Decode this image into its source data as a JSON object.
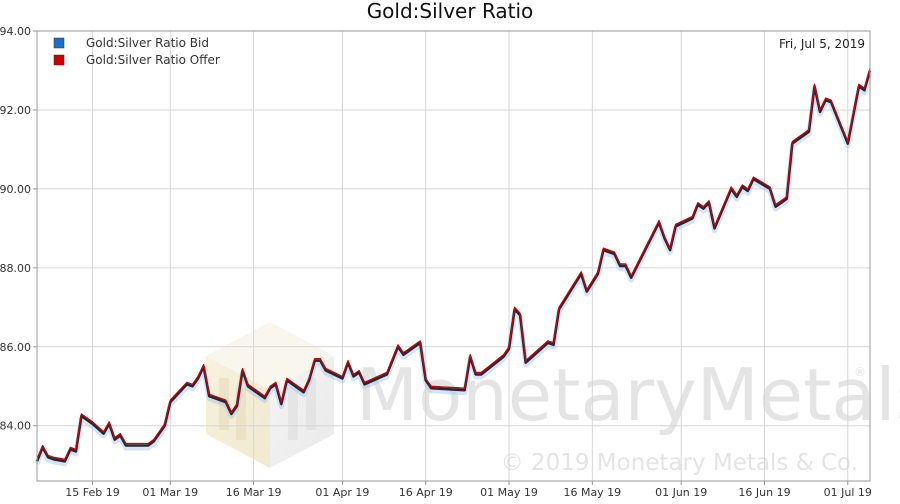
{
  "chart_data": {
    "type": "line",
    "title": "Gold:Silver Ratio",
    "date_label": "Fri, Jul 5, 2019",
    "xlabel": "",
    "ylabel": "",
    "x_range": [
      "2019-02-05",
      "2019-07-05"
    ],
    "ylim": [
      82.6,
      94.0
    ],
    "y_ticks": [
      84.0,
      86.0,
      88.0,
      90.0,
      92.0,
      94.0
    ],
    "y_tick_labels": [
      "84.00",
      "86.00",
      "88.00",
      "90.00",
      "92.00",
      "94.00"
    ],
    "x_ticks": [
      "2019-02-15",
      "2019-03-01",
      "2019-03-16",
      "2019-04-01",
      "2019-04-16",
      "2019-05-01",
      "2019-05-16",
      "2019-06-01",
      "2019-06-16",
      "2019-07-01"
    ],
    "x_tick_labels": [
      "15 Feb 19",
      "01 Mar 19",
      "16 Mar 19",
      "01 Apr 19",
      "16 Apr 19",
      "01 May 19",
      "16 May 19",
      "01 Jun 19",
      "16 Jun 19",
      "01 Jul 19"
    ],
    "grid": true,
    "legend_position": "top-left",
    "watermark": {
      "brand": "MonetaryMetals",
      "registered_mark": "®",
      "copyright": "© 2019 Monetary Metals & Co."
    },
    "series": [
      {
        "name": "Gold:Silver Ratio Bid",
        "color": "#1a6fc4",
        "points": [
          [
            "2019-02-05",
            83.1
          ],
          [
            "2019-02-06",
            83.45
          ],
          [
            "2019-02-07",
            83.2
          ],
          [
            "2019-02-08",
            83.15
          ],
          [
            "2019-02-10",
            83.1
          ],
          [
            "2019-02-11",
            83.4
          ],
          [
            "2019-02-12",
            83.35
          ],
          [
            "2019-02-13",
            84.25
          ],
          [
            "2019-02-15",
            84.05
          ],
          [
            "2019-02-17",
            83.8
          ],
          [
            "2019-02-18",
            84.05
          ],
          [
            "2019-02-19",
            83.65
          ],
          [
            "2019-02-20",
            83.75
          ],
          [
            "2019-02-21",
            83.5
          ],
          [
            "2019-02-25",
            83.5
          ],
          [
            "2019-02-26",
            83.6
          ],
          [
            "2019-02-28",
            84.0
          ],
          [
            "2019-03-01",
            84.6
          ],
          [
            "2019-03-04",
            85.05
          ],
          [
            "2019-03-05",
            85.0
          ],
          [
            "2019-03-06",
            85.2
          ],
          [
            "2019-03-07",
            85.5
          ],
          [
            "2019-03-08",
            84.75
          ],
          [
            "2019-03-11",
            84.6
          ],
          [
            "2019-03-12",
            84.3
          ],
          [
            "2019-03-13",
            84.5
          ],
          [
            "2019-03-14",
            85.4
          ],
          [
            "2019-03-15",
            85.0
          ],
          [
            "2019-03-18",
            84.7
          ],
          [
            "2019-03-19",
            84.95
          ],
          [
            "2019-03-20",
            85.05
          ],
          [
            "2019-03-21",
            84.55
          ],
          [
            "2019-03-22",
            85.15
          ],
          [
            "2019-03-25",
            84.85
          ],
          [
            "2019-03-26",
            85.15
          ],
          [
            "2019-03-27",
            85.65
          ],
          [
            "2019-03-28",
            85.65
          ],
          [
            "2019-03-29",
            85.4
          ],
          [
            "2019-04-01",
            85.2
          ],
          [
            "2019-04-02",
            85.6
          ],
          [
            "2019-04-03",
            85.25
          ],
          [
            "2019-04-04",
            85.35
          ],
          [
            "2019-04-05",
            85.05
          ],
          [
            "2019-04-09",
            85.3
          ],
          [
            "2019-04-10",
            85.65
          ],
          [
            "2019-04-11",
            86.0
          ],
          [
            "2019-04-12",
            85.8
          ],
          [
            "2019-04-15",
            86.1
          ],
          [
            "2019-04-16",
            85.15
          ],
          [
            "2019-04-17",
            84.95
          ],
          [
            "2019-04-23",
            84.9
          ],
          [
            "2019-04-24",
            85.75
          ],
          [
            "2019-04-25",
            85.3
          ],
          [
            "2019-04-26",
            85.3
          ],
          [
            "2019-04-30",
            85.75
          ],
          [
            "2019-05-01",
            85.95
          ],
          [
            "2019-05-02",
            86.95
          ],
          [
            "2019-05-03",
            86.8
          ],
          [
            "2019-05-04",
            85.6
          ],
          [
            "2019-05-08",
            86.1
          ],
          [
            "2019-05-09",
            86.05
          ],
          [
            "2019-05-10",
            86.95
          ],
          [
            "2019-05-14",
            87.85
          ],
          [
            "2019-05-15",
            87.4
          ],
          [
            "2019-05-17",
            87.85
          ],
          [
            "2019-05-18",
            88.45
          ],
          [
            "2019-05-20",
            88.35
          ],
          [
            "2019-05-21",
            88.05
          ],
          [
            "2019-05-22",
            88.05
          ],
          [
            "2019-05-23",
            87.75
          ],
          [
            "2019-05-28",
            89.15
          ],
          [
            "2019-05-29",
            88.75
          ],
          [
            "2019-05-30",
            88.45
          ],
          [
            "2019-05-31",
            89.05
          ],
          [
            "2019-06-03",
            89.25
          ],
          [
            "2019-06-04",
            89.6
          ],
          [
            "2019-06-05",
            89.5
          ],
          [
            "2019-06-06",
            89.65
          ],
          [
            "2019-06-07",
            89.0
          ],
          [
            "2019-06-10",
            90.0
          ],
          [
            "2019-06-11",
            89.8
          ],
          [
            "2019-06-12",
            90.05
          ],
          [
            "2019-06-13",
            89.95
          ],
          [
            "2019-06-14",
            90.25
          ],
          [
            "2019-06-17",
            90.0
          ],
          [
            "2019-06-18",
            89.55
          ],
          [
            "2019-06-20",
            89.75
          ],
          [
            "2019-06-21",
            91.15
          ],
          [
            "2019-06-24",
            91.45
          ],
          [
            "2019-06-25",
            92.6
          ],
          [
            "2019-06-26",
            91.95
          ],
          [
            "2019-06-27",
            92.25
          ],
          [
            "2019-06-28",
            92.2
          ],
          [
            "2019-07-01",
            91.15
          ],
          [
            "2019-07-03",
            92.6
          ],
          [
            "2019-07-04",
            92.5
          ],
          [
            "2019-07-05",
            93.0
          ]
        ]
      },
      {
        "name": "Gold:Silver Ratio Offer",
        "color": "#cc0000",
        "points": [
          [
            "2019-02-05",
            83.15
          ],
          [
            "2019-02-06",
            83.5
          ],
          [
            "2019-02-07",
            83.25
          ],
          [
            "2019-02-08",
            83.2
          ],
          [
            "2019-02-10",
            83.15
          ],
          [
            "2019-02-11",
            83.45
          ],
          [
            "2019-02-12",
            83.4
          ],
          [
            "2019-02-13",
            84.3
          ],
          [
            "2019-02-15",
            84.1
          ],
          [
            "2019-02-17",
            83.85
          ],
          [
            "2019-02-18",
            84.1
          ],
          [
            "2019-02-19",
            83.7
          ],
          [
            "2019-02-20",
            83.8
          ],
          [
            "2019-02-21",
            83.55
          ],
          [
            "2019-02-25",
            83.55
          ],
          [
            "2019-02-26",
            83.65
          ],
          [
            "2019-02-28",
            84.05
          ],
          [
            "2019-03-01",
            84.65
          ],
          [
            "2019-03-04",
            85.1
          ],
          [
            "2019-03-05",
            85.05
          ],
          [
            "2019-03-06",
            85.25
          ],
          [
            "2019-03-07",
            85.55
          ],
          [
            "2019-03-08",
            84.8
          ],
          [
            "2019-03-11",
            84.65
          ],
          [
            "2019-03-12",
            84.35
          ],
          [
            "2019-03-13",
            84.55
          ],
          [
            "2019-03-14",
            85.45
          ],
          [
            "2019-03-15",
            85.05
          ],
          [
            "2019-03-18",
            84.75
          ],
          [
            "2019-03-19",
            85.0
          ],
          [
            "2019-03-20",
            85.1
          ],
          [
            "2019-03-21",
            84.6
          ],
          [
            "2019-03-22",
            85.2
          ],
          [
            "2019-03-25",
            84.9
          ],
          [
            "2019-03-26",
            85.2
          ],
          [
            "2019-03-27",
            85.7
          ],
          [
            "2019-03-28",
            85.7
          ],
          [
            "2019-03-29",
            85.45
          ],
          [
            "2019-04-01",
            85.25
          ],
          [
            "2019-04-02",
            85.65
          ],
          [
            "2019-04-03",
            85.3
          ],
          [
            "2019-04-04",
            85.4
          ],
          [
            "2019-04-05",
            85.1
          ],
          [
            "2019-04-09",
            85.35
          ],
          [
            "2019-04-10",
            85.7
          ],
          [
            "2019-04-11",
            86.05
          ],
          [
            "2019-04-12",
            85.85
          ],
          [
            "2019-04-15",
            86.15
          ],
          [
            "2019-04-16",
            85.2
          ],
          [
            "2019-04-17",
            85.0
          ],
          [
            "2019-04-23",
            84.95
          ],
          [
            "2019-04-24",
            85.8
          ],
          [
            "2019-04-25",
            85.35
          ],
          [
            "2019-04-26",
            85.35
          ],
          [
            "2019-04-30",
            85.8
          ],
          [
            "2019-05-01",
            86.0
          ],
          [
            "2019-05-02",
            87.0
          ],
          [
            "2019-05-03",
            86.85
          ],
          [
            "2019-05-04",
            85.65
          ],
          [
            "2019-05-08",
            86.15
          ],
          [
            "2019-05-09",
            86.1
          ],
          [
            "2019-05-10",
            87.0
          ],
          [
            "2019-05-14",
            87.9
          ],
          [
            "2019-05-15",
            87.45
          ],
          [
            "2019-05-17",
            87.9
          ],
          [
            "2019-05-18",
            88.5
          ],
          [
            "2019-05-20",
            88.4
          ],
          [
            "2019-05-21",
            88.1
          ],
          [
            "2019-05-22",
            88.1
          ],
          [
            "2019-05-23",
            87.8
          ],
          [
            "2019-05-28",
            89.2
          ],
          [
            "2019-05-29",
            88.8
          ],
          [
            "2019-05-30",
            88.5
          ],
          [
            "2019-05-31",
            89.1
          ],
          [
            "2019-06-03",
            89.3
          ],
          [
            "2019-06-04",
            89.65
          ],
          [
            "2019-06-05",
            89.55
          ],
          [
            "2019-06-06",
            89.7
          ],
          [
            "2019-06-07",
            89.05
          ],
          [
            "2019-06-10",
            90.05
          ],
          [
            "2019-06-11",
            89.85
          ],
          [
            "2019-06-12",
            90.1
          ],
          [
            "2019-06-13",
            90.0
          ],
          [
            "2019-06-14",
            90.3
          ],
          [
            "2019-06-17",
            90.05
          ],
          [
            "2019-06-18",
            89.6
          ],
          [
            "2019-06-20",
            89.8
          ],
          [
            "2019-06-21",
            91.2
          ],
          [
            "2019-06-24",
            91.5
          ],
          [
            "2019-06-25",
            92.65
          ],
          [
            "2019-06-26",
            92.0
          ],
          [
            "2019-06-27",
            92.3
          ],
          [
            "2019-06-28",
            92.25
          ],
          [
            "2019-07-01",
            91.2
          ],
          [
            "2019-07-03",
            92.65
          ],
          [
            "2019-07-04",
            92.55
          ],
          [
            "2019-07-05",
            93.05
          ]
        ]
      }
    ]
  }
}
